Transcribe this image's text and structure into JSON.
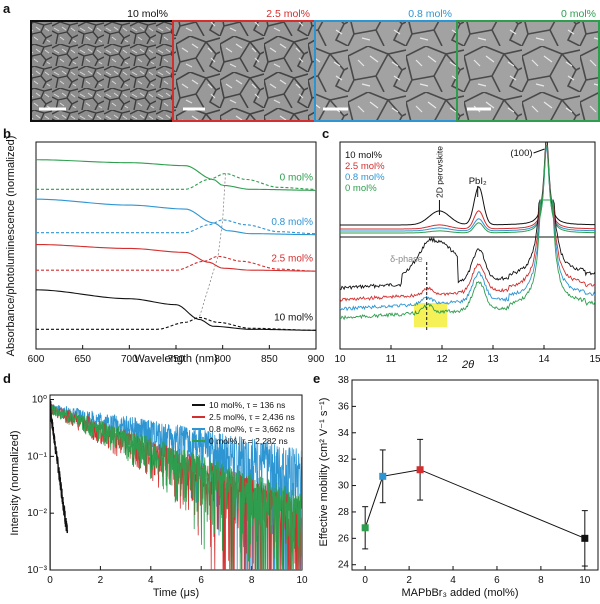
{
  "panels": {
    "a": {
      "label": "a",
      "images": [
        {
          "caption": "10 mol%",
          "color": "#111111"
        },
        {
          "caption": "2.5 mol%",
          "color": "#d32f2f"
        },
        {
          "caption": "0.8 mol%",
          "color": "#2e95d3"
        },
        {
          "caption": "0 mol%",
          "color": "#2e9e4e"
        }
      ]
    },
    "b": {
      "label": "b"
    },
    "c": {
      "label": "c"
    },
    "d": {
      "label": "d"
    },
    "e": {
      "label": "e"
    }
  },
  "chart_data": [
    {
      "panel": "b",
      "type": "line",
      "xlabel": "Wavelength (nm)",
      "ylabel": "Absorbance/photoluminescence (normalized)",
      "xlim": [
        600,
        900
      ],
      "xticks": [
        600,
        650,
        700,
        750,
        800,
        850,
        900
      ],
      "series": [
        {
          "name": "0 mol%",
          "color": "#2e9e4e",
          "absorbance": [
            [
              600,
              0.96
            ],
            [
              700,
              0.945
            ],
            [
              760,
              0.93
            ],
            [
              790,
              0.86
            ],
            [
              800,
              0.83
            ],
            [
              830,
              0.81
            ],
            [
              900,
              0.805
            ]
          ],
          "pl": [
            [
              760,
              0.81
            ],
            [
              785,
              0.86
            ],
            [
              803,
              0.89
            ],
            [
              825,
              0.86
            ],
            [
              860,
              0.82
            ],
            [
              900,
              0.81
            ]
          ]
        },
        {
          "name": "0.8 mol%",
          "color": "#2e95d3",
          "absorbance": [
            [
              600,
              0.76
            ],
            [
              700,
              0.73
            ],
            [
              760,
              0.71
            ],
            [
              790,
              0.64
            ],
            [
              805,
              0.6
            ],
            [
              830,
              0.585
            ],
            [
              900,
              0.58
            ]
          ],
          "pl": [
            [
              760,
              0.59
            ],
            [
              785,
              0.63
            ],
            [
              800,
              0.655
            ],
            [
              825,
              0.63
            ],
            [
              860,
              0.595
            ],
            [
              900,
              0.585
            ]
          ]
        },
        {
          "name": "2.5 mol%",
          "color": "#d32f2f",
          "absorbance": [
            [
              600,
              0.53
            ],
            [
              700,
              0.51
            ],
            [
              760,
              0.49
            ],
            [
              785,
              0.44
            ],
            [
              800,
              0.41
            ],
            [
              830,
              0.4
            ],
            [
              900,
              0.395
            ]
          ],
          "pl": [
            [
              750,
              0.4
            ],
            [
              780,
              0.445
            ],
            [
              795,
              0.47
            ],
            [
              820,
              0.445
            ],
            [
              860,
              0.405
            ],
            [
              900,
              0.395
            ]
          ]
        },
        {
          "name": "10 mol%",
          "color": "#111111",
          "absorbance": [
            [
              600,
              0.3
            ],
            [
              700,
              0.255
            ],
            [
              750,
              0.225
            ],
            [
              775,
              0.15
            ],
            [
              790,
              0.115
            ],
            [
              830,
              0.1
            ],
            [
              900,
              0.095
            ]
          ],
          "pl": [
            [
              730,
              0.1
            ],
            [
              760,
              0.135
            ],
            [
              775,
              0.16
            ],
            [
              795,
              0.135
            ],
            [
              830,
              0.105
            ],
            [
              900,
              0.095
            ]
          ]
        }
      ]
    },
    {
      "panel": "c",
      "type": "line",
      "xlabel": "2θ",
      "xlim": [
        10,
        15
      ],
      "xticks": [
        10,
        11,
        12,
        13,
        14,
        15
      ],
      "legend": [
        "10 mol%",
        "2.5 mol%",
        "0.8 mol%",
        "0 mol%"
      ],
      "annotations": [
        "(100)",
        "PbI₂",
        "2D perovskite",
        "δ-phase"
      ],
      "peaks": {
        "2D perovskite": 11.95,
        "PbI2": 12.7,
        "(100)": 14.05,
        "δ-phase": 11.7
      }
    },
    {
      "panel": "d",
      "type": "line",
      "xlabel": "Time (μs)",
      "ylabel": "Intensity (normalized)",
      "yscale": "log",
      "xlim": [
        0,
        10
      ],
      "ylim": [
        0.001,
        1
      ],
      "xticks": [
        0,
        2,
        4,
        6,
        8,
        10
      ],
      "yticks": [
        "10⁰",
        "10⁻¹",
        "10⁻²",
        "10⁻³"
      ],
      "series": [
        {
          "name": "10 mol%, τ = 136 ns",
          "color": "#111111",
          "tau_ns": 136
        },
        {
          "name": "2.5 mol%, τ = 2,436 ns",
          "color": "#d32f2f",
          "tau_ns": 2436
        },
        {
          "name": "0.8 mol%, τ = 3,662 ns",
          "color": "#2e95d3",
          "tau_ns": 3662
        },
        {
          "name": "0 mol%, τ = 2,282 ns",
          "color": "#2e9e4e",
          "tau_ns": 2282
        }
      ]
    },
    {
      "panel": "e",
      "type": "scatter",
      "xlabel": "MAPbBr₃ added (mol%)",
      "ylabel": "Effective mobility (cm² V⁻¹ s⁻¹)",
      "xlim": [
        0,
        10
      ],
      "ylim": [
        24,
        38
      ],
      "xticks": [
        0,
        2,
        4,
        6,
        8,
        10
      ],
      "yticks": [
        24,
        26,
        28,
        30,
        32,
        34,
        36,
        38
      ],
      "points": [
        {
          "x": 0,
          "y": 26.8,
          "err": 1.6,
          "color": "#2e9e4e"
        },
        {
          "x": 0.8,
          "y": 30.7,
          "err": 2.0,
          "color": "#2e95d3"
        },
        {
          "x": 2.5,
          "y": 31.2,
          "err": 2.3,
          "color": "#d32f2f"
        },
        {
          "x": 10,
          "y": 26.0,
          "err": 2.1,
          "color": "#111111"
        }
      ]
    }
  ]
}
